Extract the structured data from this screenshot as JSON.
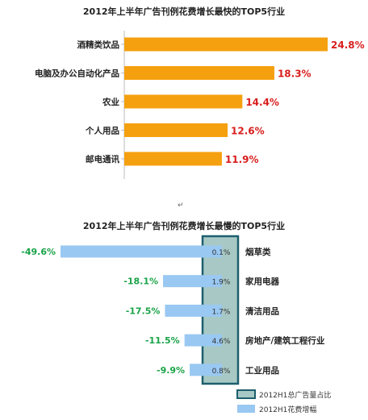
{
  "chart_data": [
    {
      "type": "bar",
      "orientation": "horizontal",
      "title": "2012年上半年广告刊例花费增长最快的TOP5行业",
      "categories": [
        "酒精类饮品",
        "电脑及办公自动化产品",
        "农业",
        "个人用品",
        "邮电通讯"
      ],
      "values": [
        24.8,
        18.3,
        14.4,
        12.6,
        11.9
      ],
      "value_labels": [
        "24.8%",
        "18.3%",
        "14.4%",
        "12.6%",
        "11.9%"
      ],
      "xlim": [
        0,
        24.8
      ],
      "grid": false,
      "colors": {
        "bar": "#f5a00f",
        "label": "#d81e1e"
      }
    },
    {
      "type": "bar",
      "orientation": "horizontal",
      "title": "2012年上半年广告刊例花费增长最慢的TOP5行业",
      "categories": [
        "烟草类",
        "家用电器",
        "清洁用品",
        "房地产/建筑工程行业",
        "工业用品"
      ],
      "series": [
        {
          "name": "2012H1花费增幅",
          "values": [
            -49.6,
            -18.1,
            -17.5,
            -11.5,
            -9.9
          ],
          "value_labels": [
            "-49.6%",
            "-18.1%",
            "-17.5%",
            "-11.5%",
            "-9.9%"
          ]
        },
        {
          "name": "2012H1总广告量占比",
          "values": [
            0.1,
            1.9,
            1.7,
            4.6,
            0.8
          ],
          "value_labels": [
            "0.1%",
            "1.9%",
            "1.7%",
            "4.6%",
            "0.8%"
          ]
        }
      ],
      "legend_position": "bottom-right",
      "grid": false,
      "colors": {
        "growth_bar": "#99c8f2",
        "share_column": "#a7c8c4",
        "share_border": "#1d5f6e",
        "label": "#1aa348"
      }
    }
  ],
  "page": {
    "marker": "↵"
  }
}
